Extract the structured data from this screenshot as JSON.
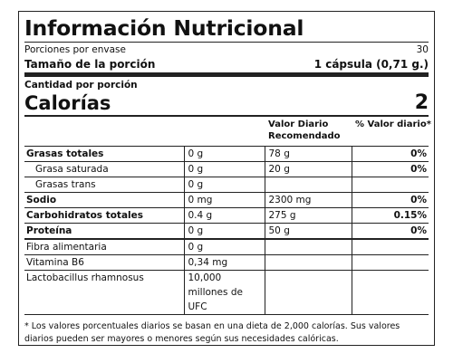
{
  "title": "Información Nutricional",
  "servings": {
    "label": "Porciones por envase",
    "value": "30"
  },
  "portion": {
    "label": "Tamaño de la porción",
    "value": "1 cápsula (0,71 g.)"
  },
  "amount_per_serving": "Cantidad por porción",
  "calories": {
    "label": "Calorías",
    "value": "2"
  },
  "columns": {
    "dv": "Valor Diario Recomendado",
    "pct": "% Valor diario*"
  },
  "nutrients": [
    {
      "name": "Grasas totales",
      "amount": "0 g",
      "dv": "78 g",
      "pct": "0%"
    },
    {
      "name": "Grasa saturada",
      "amount": "0 g",
      "dv": "20 g",
      "pct": "0%"
    },
    {
      "name": "Grasas trans",
      "amount": "0 g",
      "dv": "",
      "pct": ""
    },
    {
      "name": "Sodio",
      "amount": "0 mg",
      "dv": "2300 mg",
      "pct": "0%"
    },
    {
      "name": "Carbohidratos totales",
      "amount": "0.4 g",
      "dv": "275 g",
      "pct": "0.15%"
    },
    {
      "name": "Proteína",
      "amount": "0 g",
      "dv": "50 g",
      "pct": "0%"
    }
  ],
  "extras": [
    {
      "name": "Fibra alimentaria",
      "amount": "0 g"
    },
    {
      "name": "Vitamina B6",
      "amount": "0,34 mg"
    },
    {
      "name": "Lactobacillus rhamnosus",
      "amount": "10,000 millones de UFC"
    }
  ],
  "footnote": "* Los valores porcentuales diarios se basan en una dieta de 2,000 calorías. Sus valores diarios pueden ser mayores o menores según sus necesidades calóricas."
}
